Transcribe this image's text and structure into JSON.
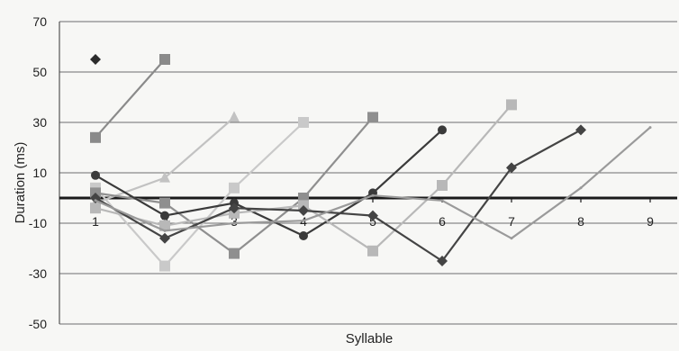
{
  "chart_data": {
    "type": "line",
    "title": "",
    "xlabel": "Syllable",
    "ylabel": "Duration (ms)",
    "ylim": [
      -50,
      70
    ],
    "yticks": [
      70,
      50,
      30,
      10,
      -10,
      -30,
      -50
    ],
    "x_categories": [
      "1",
      "2",
      "3",
      "4",
      "5",
      "6",
      "7",
      "8",
      "9"
    ],
    "grid": "horizontal",
    "legend": "none",
    "reference_line": 0,
    "series": [
      {
        "marker": "diamond",
        "color": "#2b2b2b",
        "x": [
          1
        ],
        "y": [
          55
        ]
      },
      {
        "marker": "square",
        "color": "#8a8a8a",
        "x": [
          1,
          2
        ],
        "y": [
          24,
          55
        ]
      },
      {
        "marker": "triangle",
        "color": "#c2c2c2",
        "x": [
          1,
          2,
          3
        ],
        "y": [
          -2,
          8,
          32
        ]
      },
      {
        "marker": "square",
        "color": "#c9c9c9",
        "x": [
          1,
          2,
          3,
          4
        ],
        "y": [
          4,
          -27,
          4,
          30
        ]
      },
      {
        "marker": "square",
        "color": "#8f8f8f",
        "x": [
          1,
          2,
          3,
          4,
          5
        ],
        "y": [
          2,
          -2,
          -22,
          0,
          32
        ]
      },
      {
        "marker": "circle",
        "color": "#3a3a3a",
        "x": [
          1,
          2,
          3,
          4,
          5,
          6
        ],
        "y": [
          9,
          -7,
          -2,
          -15,
          2,
          27
        ]
      },
      {
        "marker": "square",
        "color": "#b8b8b8",
        "x": [
          1,
          2,
          3,
          4,
          5,
          6,
          7
        ],
        "y": [
          -4,
          -11,
          -6,
          -3,
          -21,
          5,
          37
        ]
      },
      {
        "marker": "diamond",
        "color": "#444444",
        "x": [
          1,
          2,
          3,
          4,
          5,
          6,
          7,
          8
        ],
        "y": [
          0,
          -16,
          -4,
          -5,
          -7,
          -25,
          12,
          27
        ]
      },
      {
        "marker": "line",
        "color": "#9a9a9a",
        "x": [
          1,
          2,
          3,
          4,
          5,
          6,
          7,
          8,
          9
        ],
        "y": [
          -1,
          -13,
          -10,
          -9,
          1,
          -1,
          -16,
          4,
          28
        ]
      }
    ]
  }
}
